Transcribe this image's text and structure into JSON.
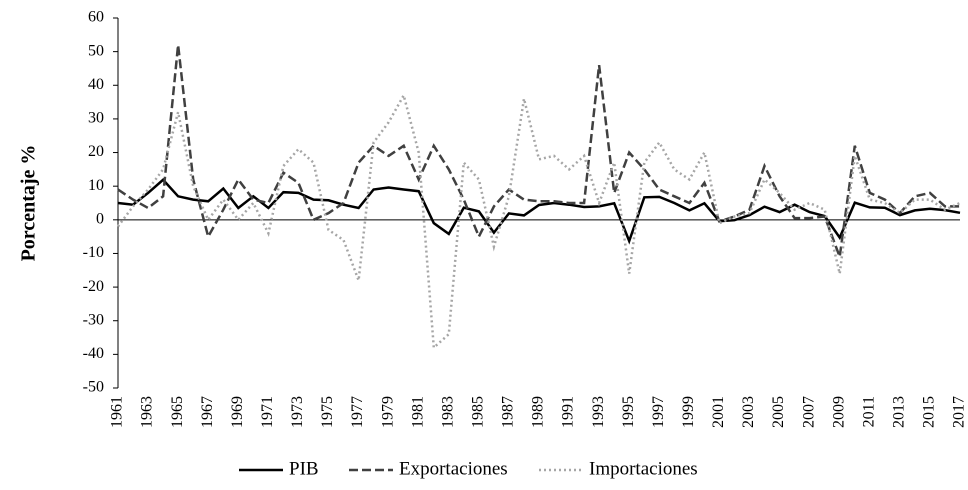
{
  "chart_data": {
    "type": "line",
    "ylabel": "Porcentaje %",
    "categories": [
      "1961",
      null,
      "1963",
      null,
      "1965",
      null,
      "1967",
      null,
      "1969",
      null,
      "1971",
      null,
      "1973",
      null,
      "1975",
      null,
      "1977",
      null,
      "1979",
      null,
      "1981",
      null,
      "1983",
      null,
      "1985",
      null,
      "1987",
      null,
      "1989",
      null,
      "1991",
      null,
      "1993",
      null,
      "1995",
      null,
      "1997",
      null,
      "1999",
      null,
      "2001",
      null,
      "2003",
      null,
      "2005",
      null,
      "2007",
      null,
      "2009",
      null,
      "2011",
      null,
      "2013",
      null,
      "2015",
      null,
      "2017"
    ],
    "series": [
      {
        "name": "PIB",
        "color": "#000000",
        "style": "solid",
        "values": [
          5,
          4.5,
          8,
          11.9,
          7,
          6,
          5.5,
          9.3,
          3.5,
          7,
          3.5,
          8.2,
          8,
          6,
          5.8,
          4.5,
          3.5,
          9,
          9.6,
          9,
          8.5,
          -1,
          -4.2,
          3.6,
          2.5,
          -3.8,
          1.9,
          1.3,
          4.4,
          5,
          4.5,
          3.8,
          4,
          4.9,
          -6.3,
          6.7,
          6.8,
          5,
          2.8,
          4.9,
          -0.4,
          -0.1,
          1.4,
          3.9,
          2.3,
          4.5,
          2.3,
          1.1,
          -5.3,
          5.1,
          3.7,
          3.6,
          1.4,
          2.8,
          3.3,
          2.9,
          2.1
        ]
      },
      {
        "name": "Exportaciones",
        "color": "#404040",
        "style": "dashed",
        "values": [
          9,
          6,
          3.5,
          7,
          52,
          12,
          -5,
          3,
          12,
          6,
          5,
          14,
          11,
          0,
          2,
          5,
          17,
          22,
          19,
          22,
          12,
          22,
          15,
          6,
          -5,
          4,
          9,
          6,
          5.5,
          5.5,
          5,
          5,
          46,
          8,
          20,
          15,
          9,
          7,
          5,
          11,
          -0.5,
          1,
          3,
          16,
          7,
          0.5,
          0.5,
          1,
          -11,
          22,
          8,
          6,
          2,
          7,
          8,
          4,
          4
        ]
      },
      {
        "name": "Importaciones",
        "color": "#a6a6a6",
        "style": "dotted",
        "values": [
          -2,
          4,
          9,
          15,
          32,
          10,
          0,
          6,
          0,
          5,
          -4,
          16,
          21,
          17,
          -3,
          -6,
          -18,
          23,
          29,
          37,
          20,
          -38,
          -34,
          17,
          12,
          -8,
          7,
          36,
          18,
          19,
          15,
          19,
          5,
          17,
          -16,
          17,
          23,
          15,
          12,
          20,
          -1,
          1,
          2,
          12,
          8,
          3,
          5,
          3,
          -16,
          19,
          6,
          5,
          2,
          6,
          6,
          3,
          5
        ]
      }
    ],
    "ylim": [
      -50,
      60
    ],
    "yticks": [
      -50,
      -40,
      -30,
      -20,
      -10,
      0,
      10,
      20,
      30,
      40,
      50,
      60
    ],
    "legend": "bottom"
  }
}
